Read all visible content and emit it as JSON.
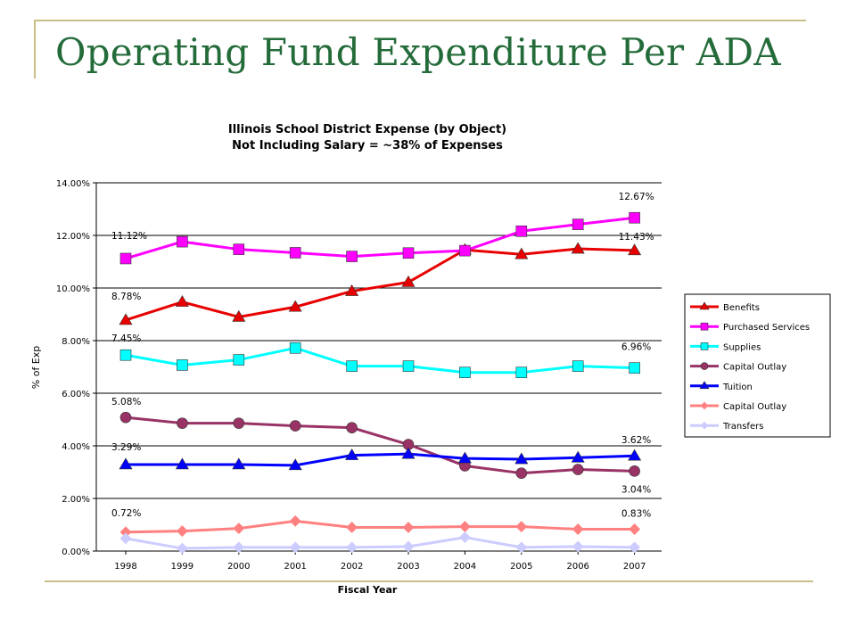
{
  "slide": {
    "title": "Operating Fund Expenditure Per ADA"
  },
  "colors": {
    "title": "#246b3a",
    "accent_lines": "#c8bf85"
  },
  "chart_data": {
    "type": "line",
    "title": "Illinois School District Expense (by Object)",
    "subtitle": "Not Including Salary = ~38% of Expenses",
    "xlabel": "Fiscal Year",
    "ylabel": "% of Exp",
    "x": [
      "1998",
      "1999",
      "2000",
      "2001",
      "2002",
      "2003",
      "2004",
      "2005",
      "2006",
      "2007"
    ],
    "ylim": [
      0,
      14
    ],
    "yticks": [
      "0.00%",
      "2.00%",
      "4.00%",
      "6.00%",
      "8.00%",
      "10.00%",
      "12.00%",
      "14.00%"
    ],
    "grid": "horizontal",
    "legend_position": "right",
    "series": [
      {
        "name": "Benefits",
        "color": "#e80000",
        "marker": "triangle",
        "values": [
          8.78,
          9.47,
          8.9,
          9.28,
          9.88,
          10.22,
          11.45,
          11.28,
          11.49,
          11.43
        ]
      },
      {
        "name": "Purchased Services",
        "color": "#ff00ff",
        "marker": "square",
        "values": [
          11.12,
          11.76,
          11.47,
          11.34,
          11.2,
          11.33,
          11.42,
          12.16,
          12.42,
          12.67
        ]
      },
      {
        "name": "Supplies",
        "color": "#00ffff",
        "marker": "square",
        "values": [
          7.45,
          7.07,
          7.27,
          7.72,
          7.03,
          7.03,
          6.79,
          6.79,
          7.03,
          6.96
        ]
      },
      {
        "name": "Capital Outlay",
        "color": "#993366",
        "marker": "circle",
        "values": [
          5.08,
          4.86,
          4.86,
          4.76,
          4.69,
          4.05,
          3.24,
          2.96,
          3.1,
          3.04
        ]
      },
      {
        "name": "Tuition",
        "color": "#0000ff",
        "marker": "triangle",
        "values": [
          3.29,
          3.29,
          3.29,
          3.26,
          3.64,
          3.69,
          3.52,
          3.49,
          3.55,
          3.62
        ]
      },
      {
        "name": "Capital Outlay",
        "color": "#ff8080",
        "marker": "diamond",
        "values": [
          0.72,
          0.76,
          0.86,
          1.14,
          0.9,
          0.9,
          0.93,
          0.93,
          0.83,
          0.83
        ]
      },
      {
        "name": "Transfers",
        "color": "#ccccff",
        "marker": "diamond",
        "values": [
          0.48,
          0.1,
          0.14,
          0.14,
          0.14,
          0.17,
          0.52,
          0.14,
          0.17,
          0.14
        ]
      }
    ],
    "annotations": [
      {
        "text": "11.12%",
        "series": 1,
        "x": "1998"
      },
      {
        "text": "8.78%",
        "series": 0,
        "x": "1998"
      },
      {
        "text": "7.45%",
        "series": 2,
        "x": "1998"
      },
      {
        "text": "5.08%",
        "series": 3,
        "x": "1998"
      },
      {
        "text": "3.29%",
        "series": 4,
        "x": "1998"
      },
      {
        "text": "0.72%",
        "series": 5,
        "x": "1998"
      },
      {
        "text": "12.67%",
        "series": 1,
        "x": "2007"
      },
      {
        "text": "11.43%",
        "series": 0,
        "x": "2007"
      },
      {
        "text": "6.96%",
        "series": 2,
        "x": "2007"
      },
      {
        "text": "3.62%",
        "series": 4,
        "x": "2007"
      },
      {
        "text": "3.04%",
        "series": 3,
        "x": "2007"
      },
      {
        "text": "0.83%",
        "series": 5,
        "x": "2007"
      }
    ]
  }
}
